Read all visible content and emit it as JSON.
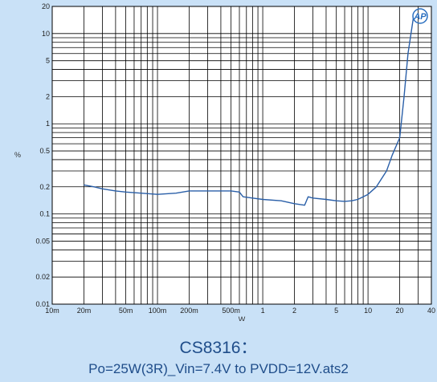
{
  "chart_data": {
    "type": "line",
    "title": "CS8316：",
    "subtitle": "Po=25W(3R)_Vin=7.4V to PVDD=12V.ats2",
    "xlabel": "W",
    "ylabel": "%",
    "xscale": "log",
    "yscale": "log",
    "xlim": [
      0.01,
      40
    ],
    "ylim": [
      0.01,
      20
    ],
    "grid": true,
    "x_ticks": [
      {
        "value": 0.01,
        "label": "10m"
      },
      {
        "value": 0.02,
        "label": "20m"
      },
      {
        "value": 0.05,
        "label": "50m"
      },
      {
        "value": 0.1,
        "label": "100m"
      },
      {
        "value": 0.2,
        "label": "200m"
      },
      {
        "value": 0.5,
        "label": "500m"
      },
      {
        "value": 1,
        "label": "1"
      },
      {
        "value": 2,
        "label": "2"
      },
      {
        "value": 5,
        "label": "5"
      },
      {
        "value": 10,
        "label": "10"
      },
      {
        "value": 20,
        "label": "20"
      },
      {
        "value": 40,
        "label": "40"
      }
    ],
    "y_ticks": [
      {
        "value": 20,
        "label": "20"
      },
      {
        "value": 10,
        "label": "10"
      },
      {
        "value": 5,
        "label": "5"
      },
      {
        "value": 2,
        "label": "2"
      },
      {
        "value": 1,
        "label": "1"
      },
      {
        "value": 0.5,
        "label": "0.5"
      },
      {
        "value": 0.2,
        "label": "0.2"
      },
      {
        "value": 0.1,
        "label": "0.1"
      },
      {
        "value": 0.05,
        "label": "0.05"
      },
      {
        "value": 0.02,
        "label": "0.02"
      },
      {
        "value": 0.01,
        "label": "0.01"
      }
    ],
    "series": [
      {
        "color": "#2a5fa8",
        "x": [
          0.02,
          0.025,
          0.03,
          0.04,
          0.05,
          0.07,
          0.1,
          0.15,
          0.2,
          0.25,
          0.3,
          0.4,
          0.5,
          0.6,
          0.65,
          0.8,
          1,
          1.5,
          2,
          2.5,
          2.7,
          3,
          4,
          5,
          6,
          7,
          8,
          10,
          12,
          15,
          17,
          20,
          22,
          24,
          27
        ],
        "y": [
          0.21,
          0.2,
          0.19,
          0.18,
          0.175,
          0.17,
          0.165,
          0.17,
          0.18,
          0.18,
          0.18,
          0.18,
          0.18,
          0.175,
          0.155,
          0.15,
          0.145,
          0.14,
          0.13,
          0.125,
          0.155,
          0.15,
          0.145,
          0.14,
          0.138,
          0.14,
          0.145,
          0.165,
          0.2,
          0.3,
          0.45,
          0.7,
          2.0,
          6.0,
          15.0
        ]
      }
    ]
  },
  "badge": {
    "text": "AP"
  },
  "colors": {
    "background": "#c9e1f7",
    "plot": "#ffffff",
    "grid": "#000000",
    "line": "#2a5fa8",
    "caption": "#1f4d8a"
  }
}
